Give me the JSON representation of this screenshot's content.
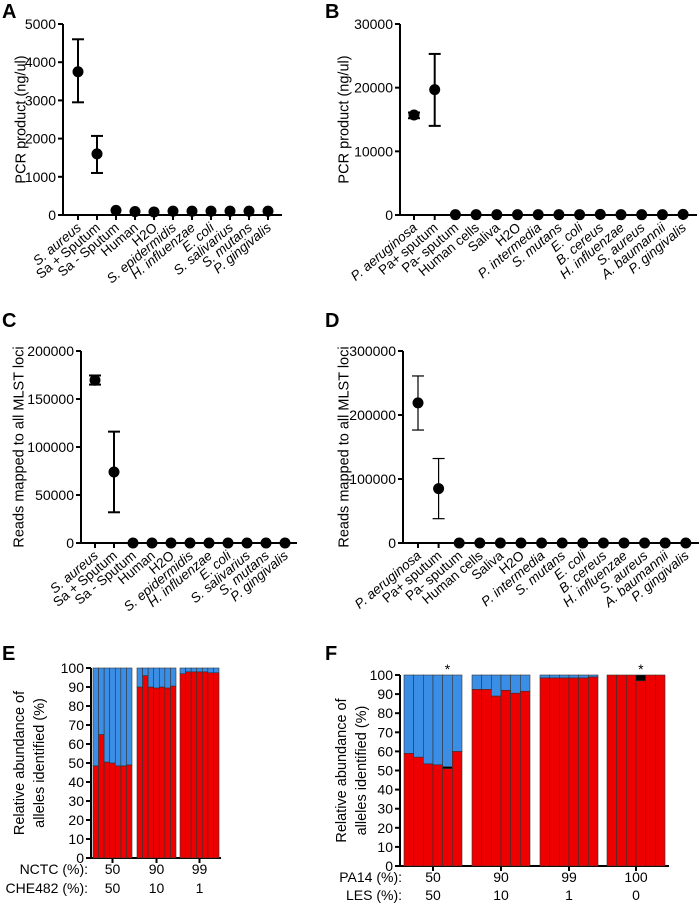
{
  "colors": {
    "points": "#000000",
    "allele_primary": "#ee0000",
    "allele_secondary": "#3b8ee6",
    "allele_other": "#000000"
  },
  "chart_data": [
    {
      "panel": "A",
      "type": "scatter",
      "ylabel": "PCR product (ng/ul)",
      "ylim": [
        0,
        5000
      ],
      "yticks": [
        "0",
        "1000",
        "2000",
        "3000",
        "4000",
        "5000"
      ],
      "categories": [
        "S. aureus",
        "Sa + Sputum",
        "Sa - Sputum",
        "Human",
        "H2O",
        "S. epidermidis",
        "H. influenzae",
        "E. coli",
        "S. salivarius",
        "S. mutans",
        "P. gingivalis"
      ],
      "values": [
        3750,
        1600,
        120,
        90,
        80,
        100,
        100,
        100,
        100,
        100,
        100
      ],
      "error": [
        [
          2950,
          4600
        ],
        [
          1100,
          2070
        ],
        null,
        null,
        null,
        null,
        null,
        null,
        null,
        null,
        null
      ]
    },
    {
      "panel": "B",
      "type": "scatter",
      "ylabel": "PCR product (ng/ul)",
      "ylim": [
        0,
        30000
      ],
      "yticks": [
        "0",
        "10000",
        "20000",
        "30000"
      ],
      "categories": [
        "P. aeruginosa",
        "Pa+ sputum",
        "Pa- sputum",
        "Human cells",
        "Saliva",
        "H2O",
        "P. intermedia",
        "S. mutans",
        "E. coli",
        "B. cereus",
        "H. influenzae",
        "S. aureus",
        "A. baumannii",
        "P. gingivalis"
      ],
      "values": [
        15700,
        19700,
        50,
        50,
        50,
        50,
        50,
        50,
        50,
        100,
        50,
        50,
        50,
        100
      ],
      "error": [
        [
          15200,
          16100
        ],
        [
          14000,
          25300
        ],
        null,
        null,
        null,
        null,
        null,
        null,
        null,
        null,
        null,
        null,
        null,
        null
      ]
    },
    {
      "panel": "C",
      "type": "scatter",
      "ylabel": "Reads mapped to all MLST loci",
      "ylim": [
        0,
        200000
      ],
      "yticks": [
        "0",
        "50000",
        "100000",
        "150000",
        "200000"
      ],
      "categories": [
        "S. aureus",
        "Sa + Sputum",
        "Sa - Sputum",
        "Human",
        "H2O",
        "S. epidermidis",
        "H. influenzae",
        "E. coli",
        "S. salivarius",
        "S. mutans",
        "P. gingivalis"
      ],
      "values": [
        169500,
        74000,
        0,
        0,
        0,
        0,
        0,
        0,
        0,
        0,
        0
      ],
      "error": [
        [
          165000,
          174500
        ],
        [
          32000,
          116000
        ],
        null,
        null,
        null,
        null,
        null,
        null,
        null,
        null,
        null
      ]
    },
    {
      "panel": "D",
      "type": "scatter",
      "ylabel": "Reads mapped to all MLST loci",
      "ylim": [
        0,
        300000
      ],
      "yticks": [
        "0",
        "100000",
        "200000",
        "300000"
      ],
      "categories": [
        "P. aeruginosa",
        "Pa+ sputum",
        "Pa- sputum",
        "Human cells",
        "Saliva",
        "H2O",
        "P. intermedia",
        "S. mutans",
        "E. coli",
        "B. cereus",
        "H. influenzae",
        "S. aureus",
        "A. baumannii",
        "P. gingivalis"
      ],
      "values": [
        219000,
        85000,
        0,
        0,
        0,
        0,
        0,
        0,
        0,
        0,
        0,
        0,
        0,
        0
      ],
      "error": [
        [
          176500,
          261000
        ],
        [
          38000,
          132000
        ],
        null,
        null,
        null,
        null,
        null,
        null,
        null,
        null,
        null,
        null,
        null,
        null
      ]
    },
    {
      "panel": "E",
      "type": "bar",
      "stacked": true,
      "ylabel": [
        "Relative abundance of",
        "alleles identified (%)"
      ],
      "ylim": [
        0,
        100
      ],
      "yticks": [
        "0",
        "10",
        "20",
        "30",
        "40",
        "50",
        "60",
        "70",
        "80",
        "90",
        "100"
      ],
      "row_labels": [
        "NCTC (%):",
        "CHE482 (%):"
      ],
      "groups": [
        {
          "labels": [
            "50",
            "50"
          ],
          "bars": [
            [
              48.5,
              0,
              51.5
            ],
            [
              65,
              0,
              35
            ],
            [
              50.5,
              0,
              49.5
            ],
            [
              50,
              0,
              50
            ],
            [
              48.5,
              0,
              51.5
            ],
            [
              48.5,
              0,
              51.5
            ],
            [
              49,
              0,
              51
            ]
          ],
          "stars": []
        },
        {
          "labels": [
            "90",
            "10"
          ],
          "bars": [
            [
              90,
              0,
              10
            ],
            [
              96,
              0,
              4
            ],
            [
              90,
              0,
              10
            ],
            [
              89.5,
              0,
              10.5
            ],
            [
              90,
              0,
              10
            ],
            [
              89.5,
              0,
              10.5
            ],
            [
              90.5,
              0,
              9.5
            ]
          ],
          "stars": []
        },
        {
          "labels": [
            "99",
            "1"
          ],
          "bars": [
            [
              97,
              0,
              3
            ],
            [
              98,
              0,
              2
            ],
            [
              98,
              0,
              2
            ],
            [
              98,
              0,
              2
            ],
            [
              98,
              0,
              2
            ],
            [
              97.5,
              0,
              2.5
            ],
            [
              97.5,
              0,
              2.5
            ]
          ],
          "stars": []
        }
      ]
    },
    {
      "panel": "F",
      "type": "bar",
      "stacked": true,
      "ylabel": [
        "Relative abundance of",
        "alleles identified (%)"
      ],
      "ylim": [
        0,
        100
      ],
      "yticks": [
        "0",
        "10",
        "20",
        "30",
        "40",
        "50",
        "60",
        "70",
        "80",
        "90",
        "100"
      ],
      "row_labels": [
        "PA14 (%):",
        "LES (%):"
      ],
      "star_label": "*",
      "groups": [
        {
          "labels": [
            "50",
            "50"
          ],
          "bars": [
            [
              59,
              0,
              41
            ],
            [
              57,
              0,
              43
            ],
            [
              53.5,
              0,
              46.5
            ],
            [
              53,
              0,
              47
            ],
            [
              51,
              1,
              48
            ],
            [
              60,
              0,
              40
            ]
          ],
          "stars": [
            4
          ]
        },
        {
          "labels": [
            "90",
            "10"
          ],
          "bars": [
            [
              92.5,
              0,
              7.5
            ],
            [
              92.5,
              0,
              7.5
            ],
            [
              89,
              0,
              11
            ],
            [
              92,
              0,
              8
            ],
            [
              90.5,
              0,
              9.5
            ],
            [
              91.5,
              0,
              8.5
            ]
          ],
          "stars": []
        },
        {
          "labels": [
            "99",
            "1"
          ],
          "bars": [
            [
              98.5,
              0,
              1.5
            ],
            [
              98.5,
              0,
              1.5
            ],
            [
              98.5,
              0,
              1.5
            ],
            [
              98.5,
              0,
              1.5
            ],
            [
              98.5,
              0,
              1.5
            ],
            [
              99,
              0,
              1
            ]
          ],
          "stars": []
        },
        {
          "labels": [
            "100",
            "0"
          ],
          "bars": [
            [
              100,
              0,
              0
            ],
            [
              100,
              0,
              0
            ],
            [
              100,
              0,
              0
            ],
            [
              97,
              3,
              0
            ],
            [
              100,
              0,
              0
            ],
            [
              100,
              0,
              0
            ]
          ],
          "stars": [
            3
          ]
        }
      ]
    }
  ]
}
